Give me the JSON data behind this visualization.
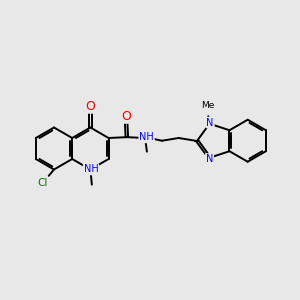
{
  "bg_color": "#e8e8e8",
  "bond_color": "#000000",
  "bond_width": 1.4,
  "atom_colors": {
    "O": "#ff0000",
    "N": "#0000ff",
    "Cl": "#008000",
    "C": "#000000"
  },
  "font_size": 7.0,
  "xlim": [
    0,
    10
  ],
  "ylim": [
    2,
    8.5
  ]
}
